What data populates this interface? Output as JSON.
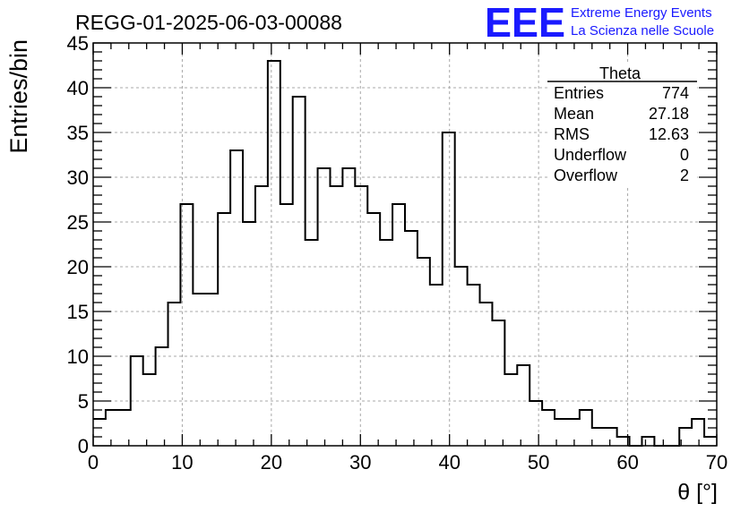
{
  "chart_data": {
    "type": "bar",
    "title": "REGG-01-2025-06-03-00088",
    "xlabel": "θ [°]",
    "ylabel": "Entries/bin",
    "xlim": [
      0,
      70
    ],
    "ylim": [
      0,
      45
    ],
    "bin_width": 1.4,
    "x_ticks": [
      0,
      10,
      20,
      30,
      40,
      50,
      60,
      70
    ],
    "y_ticks": [
      0,
      5,
      10,
      15,
      20,
      25,
      30,
      35,
      40,
      45
    ],
    "grid": true,
    "values": [
      3,
      4,
      4,
      10,
      8,
      11,
      16,
      27,
      17,
      17,
      26,
      33,
      25,
      29,
      43,
      27,
      39,
      23,
      31,
      29,
      31,
      29,
      26,
      23,
      27,
      24,
      21,
      18,
      35,
      20,
      18,
      16,
      14,
      8,
      9,
      5,
      4,
      3,
      3,
      4,
      2,
      2,
      1,
      0,
      1,
      0,
      0,
      2,
      3,
      1
    ]
  },
  "stats_box": {
    "title": "Theta",
    "rows": [
      {
        "label": "Entries",
        "value": "774"
      },
      {
        "label": "Mean",
        "value": "27.18"
      },
      {
        "label": "RMS",
        "value": "12.63"
      },
      {
        "label": "Underflow",
        "value": "0"
      },
      {
        "label": "Overflow",
        "value": "2"
      }
    ]
  },
  "logo": {
    "text": "EEE",
    "line1": "Extreme Energy Events",
    "line2": "La Scienza nelle Scuole",
    "color": "#1a1aff"
  }
}
